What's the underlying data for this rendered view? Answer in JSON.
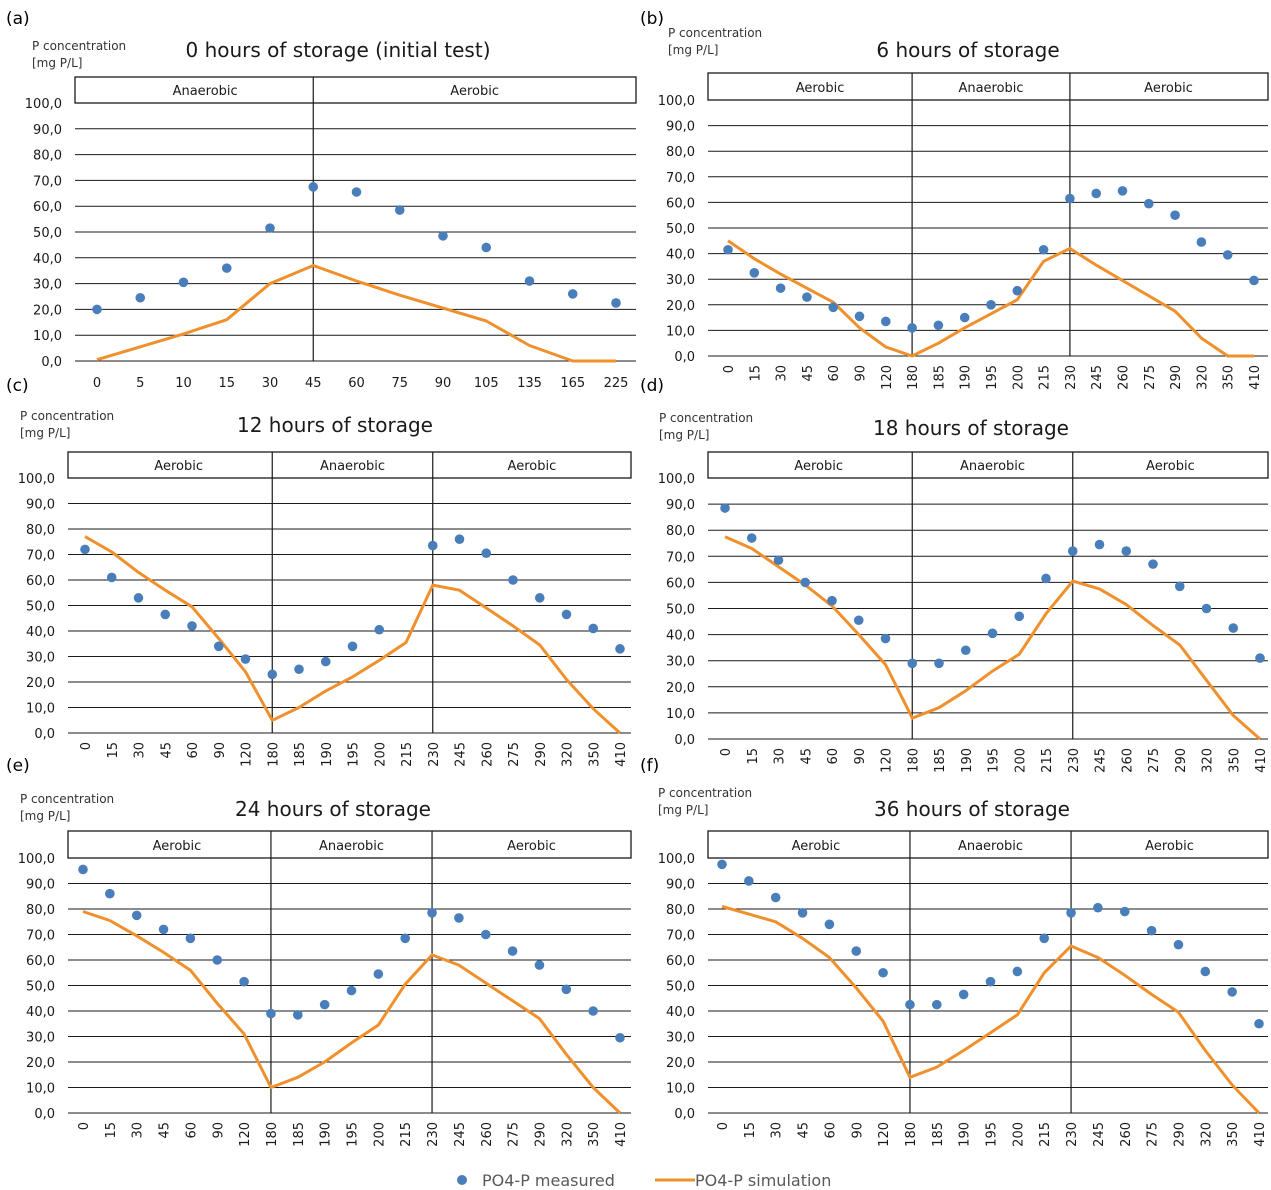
{
  "legend": {
    "measured": "PO4-P measured",
    "simulation": "PO4-P simulation",
    "measured_color": "#4a7ebb",
    "simulation_color": "#f0902c"
  },
  "chart_data": [
    {
      "type": "line",
      "panel": "(a)",
      "title": "0 hours of storage (initial test)",
      "ylabel": [
        "P concentration",
        "[mg P/L]"
      ],
      "categories": [
        "0",
        "5",
        "10",
        "15",
        "30",
        "45",
        "60",
        "75",
        "90",
        "105",
        "135",
        "165",
        "225"
      ],
      "ylim": [
        0,
        100
      ],
      "yticks": [
        "0,0",
        "10,0",
        "20,0",
        "30,0",
        "40,0",
        "50,0",
        "60,0",
        "70,0",
        "80,0",
        "90,0",
        "100,0"
      ],
      "phases": [
        {
          "label": "Anaerobic",
          "from": 0,
          "to": 5
        },
        {
          "label": "Aerobic",
          "from": 5,
          "to": 12.5
        }
      ],
      "series": [
        {
          "name": "PO4-P measured",
          "kind": "scatter",
          "values": [
            20,
            24.5,
            30.5,
            36,
            51.5,
            67.5,
            65.5,
            58.5,
            48.5,
            44,
            31,
            26,
            22.5
          ]
        },
        {
          "name": "PO4-P simulation",
          "kind": "line",
          "values": [
            0.5,
            5.5,
            10.5,
            16,
            30,
            37,
            31,
            25.5,
            20.5,
            15.5,
            6,
            0,
            0
          ]
        }
      ],
      "x_label_rotation": 0
    },
    {
      "type": "line",
      "panel": "(b)",
      "title": "6 hours of storage",
      "ylabel": [
        "P concentration",
        "[mg P/L]"
      ],
      "categories": [
        "0",
        "15",
        "30",
        "45",
        "60",
        "90",
        "120",
        "180",
        "185",
        "190",
        "195",
        "200",
        "215",
        "230",
        "245",
        "260",
        "275",
        "290",
        "320",
        "350",
        "410"
      ],
      "ylim": [
        0,
        100
      ],
      "yticks": [
        "0,0",
        "10,0",
        "20,0",
        "30,0",
        "40,0",
        "50,0",
        "60,0",
        "70,0",
        "80,0",
        "90,0",
        "100,0"
      ],
      "phases": [
        {
          "label": "Aerobic",
          "from": 0,
          "to": 7
        },
        {
          "label": "Anaerobic",
          "from": 7,
          "to": 13
        },
        {
          "label": "Aerobic",
          "from": 13,
          "to": 20.5
        }
      ],
      "series": [
        {
          "name": "PO4-P measured",
          "kind": "scatter",
          "values": [
            41.5,
            32.5,
            26.5,
            23,
            19,
            15.5,
            13.5,
            11,
            12,
            15,
            20,
            25.5,
            41.5,
            61.5,
            63.5,
            64.5,
            59.5,
            55,
            44.5,
            39.5,
            29.5
          ]
        },
        {
          "name": "PO4-P simulation",
          "kind": "line",
          "values": [
            45,
            38,
            32,
            26.5,
            21,
            11,
            3.5,
            0,
            5,
            11,
            16.5,
            22,
            37,
            42,
            35.5,
            29.5,
            23.5,
            17.5,
            7,
            0,
            0
          ]
        }
      ],
      "x_label_rotation": -90
    },
    {
      "type": "line",
      "panel": "(c)",
      "title": "12 hours of storage",
      "ylabel": [
        "P concentration",
        "[mg P/L]"
      ],
      "categories": [
        "0",
        "15",
        "30",
        "45",
        "60",
        "90",
        "120",
        "180",
        "185",
        "190",
        "195",
        "200",
        "215",
        "230",
        "245",
        "260",
        "275",
        "290",
        "320",
        "350",
        "410"
      ],
      "ylim": [
        0,
        100
      ],
      "yticks": [
        "0,0",
        "10,0",
        "20,0",
        "30,0",
        "40,0",
        "50,0",
        "60,0",
        "70,0",
        "80,0",
        "90,0",
        "100,0"
      ],
      "phases": [
        {
          "label": "Aerobic",
          "from": 0,
          "to": 7
        },
        {
          "label": "Anaerobic",
          "from": 7,
          "to": 13
        },
        {
          "label": "Aerobic",
          "from": 13,
          "to": 20.5
        }
      ],
      "series": [
        {
          "name": "PO4-P measured",
          "kind": "scatter",
          "values": [
            72,
            61,
            53,
            46.5,
            42,
            34,
            29,
            23,
            25,
            28,
            34,
            40.5,
            null,
            73.5,
            76,
            70.5,
            60,
            53,
            46.5,
            41,
            33
          ]
        },
        {
          "name": "PO4-P simulation",
          "kind": "line",
          "values": [
            77,
            71,
            63,
            56,
            49.5,
            37,
            24,
            5,
            10,
            16.5,
            22,
            28.5,
            35.5,
            58,
            56,
            49,
            42,
            34.5,
            21,
            9.5,
            0
          ]
        }
      ],
      "x_label_rotation": -90
    },
    {
      "type": "line",
      "panel": "(d)",
      "title": "18 hours of storage",
      "ylabel": [
        "P concentration",
        "[mg P/L]"
      ],
      "categories": [
        "0",
        "15",
        "30",
        "45",
        "60",
        "90",
        "120",
        "180",
        "185",
        "190",
        "195",
        "200",
        "215",
        "230",
        "245",
        "260",
        "275",
        "290",
        "320",
        "350",
        "410"
      ],
      "ylim": [
        0,
        100
      ],
      "yticks": [
        "0,0",
        "10,0",
        "20,0",
        "30,0",
        "40,0",
        "50,0",
        "60,0",
        "70,0",
        "80,0",
        "90,0",
        "100,0"
      ],
      "phases": [
        {
          "label": "Aerobic",
          "from": 0,
          "to": 7
        },
        {
          "label": "Anaerobic",
          "from": 7,
          "to": 13
        },
        {
          "label": "Aerobic",
          "from": 13,
          "to": 20.5
        }
      ],
      "series": [
        {
          "name": "PO4-P measured",
          "kind": "scatter",
          "values": [
            88.5,
            77,
            68.5,
            60,
            53,
            45.5,
            38.5,
            29,
            29,
            34,
            40.5,
            47,
            61.5,
            72,
            74.5,
            72,
            67,
            58.5,
            50,
            42.5,
            31
          ]
        },
        {
          "name": "PO4-P simulation",
          "kind": "line",
          "values": [
            77.5,
            73,
            66,
            59,
            51,
            40,
            28.5,
            8,
            12,
            18.5,
            26,
            32.5,
            48,
            60.5,
            57.5,
            51.5,
            43.5,
            36,
            22.5,
            9,
            0
          ]
        }
      ],
      "x_label_rotation": -90
    },
    {
      "type": "line",
      "panel": "(e)",
      "title": "24 hours of storage",
      "ylabel": [
        "P concentration",
        "[mg P/L]"
      ],
      "categories": [
        "0",
        "15",
        "30",
        "45",
        "60",
        "90",
        "120",
        "180",
        "185",
        "190",
        "195",
        "200",
        "215",
        "230",
        "245",
        "260",
        "275",
        "290",
        "320",
        "350",
        "410"
      ],
      "ylim": [
        0,
        100
      ],
      "yticks": [
        "0,0",
        "10,0",
        "20,0",
        "30,0",
        "40,0",
        "50,0",
        "60,0",
        "70,0",
        "80,0",
        "90,0",
        "100,0"
      ],
      "phases": [
        {
          "label": "Aerobic",
          "from": 0,
          "to": 7
        },
        {
          "label": "Anaerobic",
          "from": 7,
          "to": 13
        },
        {
          "label": "Aerobic",
          "from": 13,
          "to": 20.5
        }
      ],
      "series": [
        {
          "name": "PO4-P measured",
          "kind": "scatter",
          "values": [
            95.5,
            86,
            77.5,
            72,
            68.5,
            60,
            51.5,
            39,
            38.5,
            42.5,
            48,
            54.5,
            68.5,
            78.5,
            76.5,
            70,
            63.5,
            58,
            48.5,
            40,
            29.5
          ]
        },
        {
          "name": "PO4-P simulation",
          "kind": "line",
          "values": [
            79,
            75.5,
            69.5,
            63,
            56,
            43,
            31,
            10,
            14,
            20,
            27.5,
            34.5,
            50.5,
            62,
            58,
            51,
            44,
            37,
            23,
            10,
            0
          ]
        }
      ],
      "x_label_rotation": -90
    },
    {
      "type": "line",
      "panel": "(f)",
      "title": "36 hours of storage",
      "ylabel": [
        "P concentration",
        "[mg P/L]"
      ],
      "categories": [
        "0",
        "15",
        "30",
        "45",
        "60",
        "90",
        "120",
        "180",
        "185",
        "190",
        "195",
        "200",
        "215",
        "230",
        "245",
        "260",
        "275",
        "290",
        "320",
        "350",
        "410"
      ],
      "ylim": [
        0,
        100
      ],
      "yticks": [
        "0,0",
        "10,0",
        "20,0",
        "30,0",
        "40,0",
        "50,0",
        "60,0",
        "70,0",
        "80,0",
        "90,0",
        "100,0"
      ],
      "phases": [
        {
          "label": "Aerobic",
          "from": 0,
          "to": 7
        },
        {
          "label": "Anaerobic",
          "from": 7,
          "to": 13
        },
        {
          "label": "Aerobic",
          "from": 13,
          "to": 20.5
        }
      ],
      "series": [
        {
          "name": "PO4-P measured",
          "kind": "scatter",
          "values": [
            97.5,
            91,
            84.5,
            78.5,
            74,
            63.5,
            55,
            42.5,
            42.5,
            46.5,
            51.5,
            55.5,
            68.5,
            78.5,
            80.5,
            79,
            71.5,
            66,
            55.5,
            47.5,
            35
          ]
        },
        {
          "name": "PO4-P simulation",
          "kind": "line",
          "values": [
            81,
            78,
            75,
            68.5,
            61,
            49,
            36,
            14,
            18,
            24.5,
            31.5,
            38.5,
            55,
            65.5,
            61,
            54,
            46.5,
            39.5,
            24.5,
            11,
            0
          ]
        }
      ],
      "x_label_rotation": -90
    }
  ]
}
